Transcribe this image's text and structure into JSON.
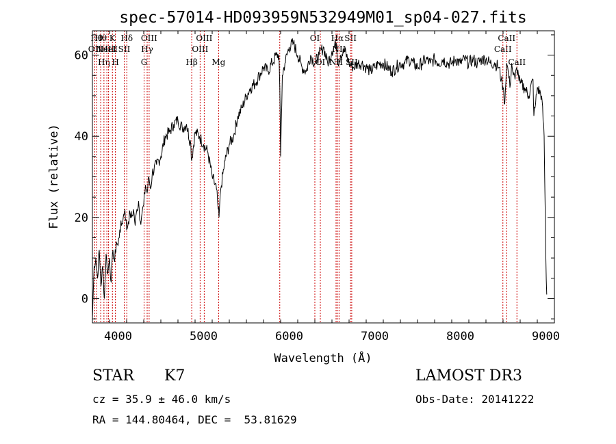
{
  "chart_data": {
    "type": "line",
    "title": "spec-57014-HD093959N532949M01_sp04-027.fits",
    "xlabel": "Wavelength (Å)",
    "ylabel": "Flux (relative)",
    "xlim": [
      3700,
      9100
    ],
    "ylim": [
      -6,
      66
    ],
    "x_ticks": [
      4000,
      5000,
      6000,
      7000,
      8000,
      9000
    ],
    "y_ticks": [
      0,
      20,
      40,
      60
    ],
    "grid": false,
    "series": [
      {
        "name": "flux",
        "x": [
          3700,
          3720,
          3740,
          3760,
          3780,
          3800,
          3820,
          3840,
          3860,
          3880,
          3900,
          3920,
          3940,
          3960,
          3980,
          4000,
          4020,
          4040,
          4060,
          4080,
          4100,
          4120,
          4140,
          4160,
          4180,
          4200,
          4220,
          4240,
          4260,
          4280,
          4300,
          4320,
          4340,
          4360,
          4380,
          4400,
          4450,
          4500,
          4550,
          4600,
          4650,
          4700,
          4750,
          4800,
          4850,
          4860,
          4900,
          4950,
          5000,
          5050,
          5100,
          5150,
          5170,
          5180,
          5200,
          5250,
          5300,
          5350,
          5400,
          5450,
          5500,
          5550,
          5600,
          5650,
          5700,
          5750,
          5800,
          5850,
          5880,
          5890,
          5900,
          5920,
          5950,
          6000,
          6050,
          6100,
          6150,
          6200,
          6250,
          6300,
          6350,
          6400,
          6450,
          6500,
          6550,
          6560,
          6570,
          6600,
          6650,
          6700,
          6750,
          6800,
          6850,
          6900,
          6950,
          7000,
          7050,
          7100,
          7150,
          7200,
          7250,
          7300,
          7350,
          7400,
          7450,
          7500,
          7550,
          7600,
          7650,
          7700,
          7750,
          7800,
          7850,
          7900,
          7950,
          8000,
          8050,
          8100,
          8150,
          8200,
          8250,
          8300,
          8350,
          8400,
          8450,
          8480,
          8500,
          8520,
          8540,
          8560,
          8580,
          8600,
          8620,
          8640,
          8660,
          8680,
          8700,
          8750,
          8800,
          8850,
          8860,
          8880,
          8900,
          8950,
          8980,
          9000,
          9010
        ],
        "y": [
          -5,
          8,
          10,
          5,
          12,
          3,
          8,
          0,
          11,
          6,
          10,
          4,
          12,
          9,
          14,
          13,
          17,
          18,
          20,
          22,
          17,
          19,
          21,
          20,
          22,
          18,
          22,
          24,
          19,
          21,
          23,
          28,
          26,
          30,
          27,
          31,
          33,
          35,
          40,
          41,
          43,
          44,
          42,
          43,
          38,
          34,
          41,
          40,
          38,
          36,
          30,
          27,
          22,
          20,
          27,
          34,
          38,
          40,
          45,
          47,
          50,
          52,
          53,
          55,
          57,
          56,
          58,
          60,
          60,
          52,
          35,
          55,
          58,
          62,
          63,
          60,
          57,
          56,
          60,
          58,
          60,
          62,
          58,
          61,
          63,
          60,
          58,
          60,
          61,
          58,
          57,
          58,
          58,
          57,
          56,
          57,
          58,
          58,
          57,
          56,
          57,
          58,
          58,
          59,
          58,
          57,
          58,
          59,
          58,
          59,
          58,
          59,
          58,
          58,
          59,
          58,
          59,
          58,
          59,
          58,
          59,
          59,
          58,
          58,
          57,
          54,
          52,
          48,
          58,
          56,
          52,
          58,
          55,
          54,
          57,
          55,
          53,
          52,
          50,
          54,
          45,
          48,
          52,
          50,
          40,
          10,
          1
        ]
      }
    ],
    "line_markers": [
      {
        "wavelength": 3727,
        "label": "OII",
        "row": 2
      },
      {
        "wavelength": 3750,
        "label": "Hθ",
        "row": 1
      },
      {
        "wavelength": 3797,
        "label": "Hθ",
        "row": 1
      },
      {
        "wavelength": 3835,
        "label": "Hη",
        "row": 3
      },
      {
        "wavelength": 3869,
        "label": "NeIII",
        "row": 2
      },
      {
        "wavelength": 3889,
        "label": "HeI",
        "row": 2
      },
      {
        "wavelength": 3934,
        "label": "K",
        "row": 1
      },
      {
        "wavelength": 3969,
        "label": "H",
        "row": 3
      },
      {
        "wavelength": 4072,
        "label": "SII",
        "row": 2
      },
      {
        "wavelength": 4102,
        "label": "Hδ",
        "row": 1
      },
      {
        "wavelength": 4304,
        "label": "G",
        "row": 3
      },
      {
        "wavelength": 4340,
        "label": "Hγ",
        "row": 2
      },
      {
        "wavelength": 4363,
        "label": "OIII",
        "row": 1
      },
      {
        "wavelength": 4861,
        "label": "Hβ",
        "row": 3
      },
      {
        "wavelength": 4959,
        "label": "OIII",
        "row": 2
      },
      {
        "wavelength": 5007,
        "label": "OIII",
        "row": 1
      },
      {
        "wavelength": 5175,
        "label": "Mg",
        "row": 3
      },
      {
        "wavelength": 5890,
        "label": "",
        "row": 0
      },
      {
        "wavelength": 6300,
        "label": "OI",
        "row": 1
      },
      {
        "wavelength": 6364,
        "label": "OI",
        "row": 3
      },
      {
        "wavelength": 6548,
        "label": "NII",
        "row": 3
      },
      {
        "wavelength": 6563,
        "label": "Hα",
        "row": 1
      },
      {
        "wavelength": 6583,
        "label": "NII",
        "row": 2
      },
      {
        "wavelength": 6717,
        "label": "SII",
        "row": 1
      },
      {
        "wavelength": 6731,
        "label": "SII",
        "row": 3
      },
      {
        "wavelength": 8498,
        "label": "CaII",
        "row": 2
      },
      {
        "wavelength": 8542,
        "label": "CaII",
        "row": 1
      },
      {
        "wavelength": 8662,
        "label": "CaII",
        "row": 3
      }
    ],
    "line_color": "#000000",
    "marker_color": "#cc0000"
  },
  "info": {
    "object_class": "STAR",
    "subclass": "K7",
    "survey": "LAMOST DR3",
    "cz": "cz = 35.9 ± 46.0 km/s",
    "obs_date": "Obs-Date: 20141222",
    "coords": "RA = 144.80464, DEC =  53.81629"
  }
}
